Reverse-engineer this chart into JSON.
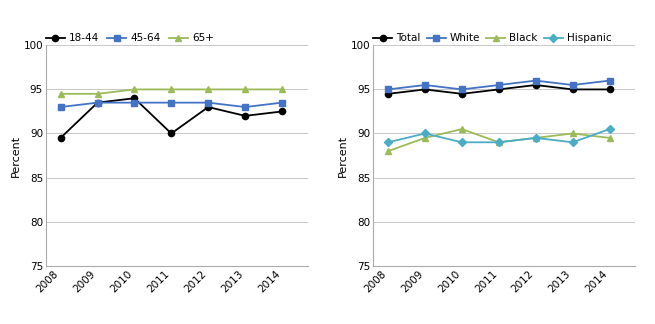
{
  "years": [
    2008,
    2009,
    2010,
    2011,
    2012,
    2013,
    2014
  ],
  "left_chart": {
    "18-44": [
      89.5,
      93.5,
      94.0,
      90.0,
      93.0,
      92.0,
      92.5
    ],
    "45-64": [
      93.0,
      93.5,
      93.5,
      93.5,
      93.5,
      93.0,
      93.5
    ],
    "65+": [
      94.5,
      94.5,
      95.0,
      95.0,
      95.0,
      95.0,
      95.0
    ]
  },
  "right_chart": {
    "Total": [
      94.5,
      95.0,
      94.5,
      95.0,
      95.5,
      95.0,
      95.0
    ],
    "White": [
      95.0,
      95.5,
      95.0,
      95.5,
      96.0,
      95.5,
      96.0
    ],
    "Black": [
      88.0,
      89.5,
      90.5,
      89.0,
      89.5,
      90.0,
      89.5
    ],
    "Hispanic": [
      89.0,
      90.0,
      89.0,
      89.0,
      89.5,
      89.0,
      90.5
    ]
  },
  "left_series": [
    {
      "label": "18-44",
      "color": "#000000",
      "marker": "o"
    },
    {
      "label": "45-64",
      "color": "#4472c4",
      "marker": "s"
    },
    {
      "label": "65+",
      "color": "#9bbb59",
      "marker": "^"
    }
  ],
  "right_series": [
    {
      "label": "Total",
      "color": "#000000",
      "marker": "o"
    },
    {
      "label": "White",
      "color": "#4472c4",
      "marker": "s"
    },
    {
      "label": "Black",
      "color": "#9bbb59",
      "marker": "^"
    },
    {
      "label": "Hispanic",
      "color": "#4bacc6",
      "marker": "D"
    }
  ],
  "ylim": [
    75,
    100
  ],
  "yticks": [
    75,
    80,
    85,
    90,
    95,
    100
  ],
  "ylabel": "Percent",
  "background_color": "#ffffff",
  "grid_color": "#c8c8c8"
}
